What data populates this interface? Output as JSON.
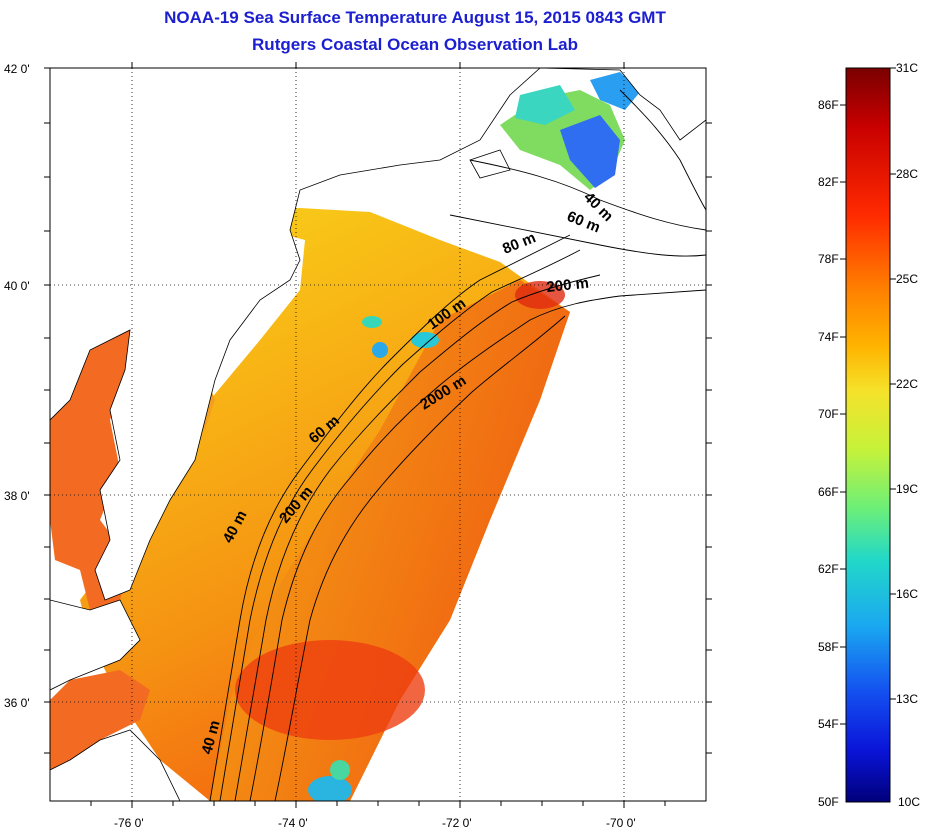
{
  "title": {
    "line1": "NOAA-19 Sea Surface Temperature August 15, 2015 0843 GMT",
    "line2": "Rutgers Coastal Ocean Observation Lab"
  },
  "axes": {
    "lat_labels": [
      "42 0'",
      "40 0'",
      "38 0'",
      "36 0'"
    ],
    "lon_labels": [
      "-76 0'",
      "-74 0'",
      "-72 0'",
      "-70 0'"
    ]
  },
  "contours": [
    {
      "label": "40 m"
    },
    {
      "label": "60 m"
    },
    {
      "label": "80 m"
    },
    {
      "label": "200 m"
    },
    {
      "label": "100 m"
    },
    {
      "label": "2000 m"
    },
    {
      "label": "60 m"
    },
    {
      "label": "200 m"
    },
    {
      "label": "40 m"
    },
    {
      "label": "40 m"
    }
  ],
  "colorbar": {
    "fahrenheit": [
      "86F",
      "82F",
      "78F",
      "74F",
      "70F",
      "66F",
      "62F",
      "58F",
      "54F",
      "50F"
    ],
    "celsius": [
      "31C",
      "28C",
      "25C",
      "22C",
      "19C",
      "16C",
      "13C",
      "10C"
    ],
    "colors": [
      "#7a0000",
      "#c80000",
      "#ff2a00",
      "#ff7f00",
      "#ffb400",
      "#f5e22a",
      "#c6f23a",
      "#6cef78",
      "#22d8c8",
      "#1aa8f0",
      "#1450f0",
      "#0a14d8",
      "#00007a"
    ]
  }
}
